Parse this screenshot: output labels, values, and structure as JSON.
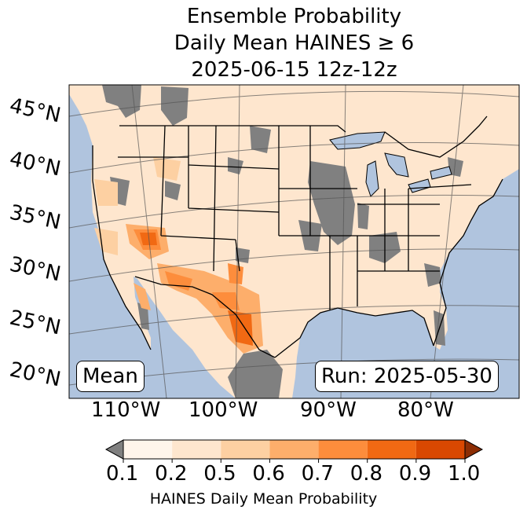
{
  "title": {
    "line1": "Ensemble Probability",
    "line2": "Daily Mean HAINES ≥ 6",
    "line3": "2025-06-15 12z-12z"
  },
  "lat_labels": [
    "45°N",
    "40°N",
    "35°N",
    "30°N",
    "25°N",
    "20°N"
  ],
  "lon_labels": [
    "110°W",
    "100°W",
    "90°W",
    "80°W"
  ],
  "boxes": {
    "stat": "Mean",
    "run": "Run: 2025-05-30"
  },
  "colorbar": {
    "ticks": [
      "0.1",
      "0.2",
      "0.5",
      "0.6",
      "0.7",
      "0.8",
      "0.9",
      "1.0"
    ],
    "colors": [
      "#fff5eb",
      "#fee6ce",
      "#fdd0a2",
      "#fdae6b",
      "#fd8d3c",
      "#f16913",
      "#d94801"
    ],
    "under_color": "#808080",
    "over_color": "#8c2d04",
    "label": "HAINES Daily Mean Probability"
  },
  "map_colors": {
    "ocean": "#b0c4de",
    "land": "#fee6ce",
    "masked": "#808080",
    "lakes": "#b0c4de"
  }
}
